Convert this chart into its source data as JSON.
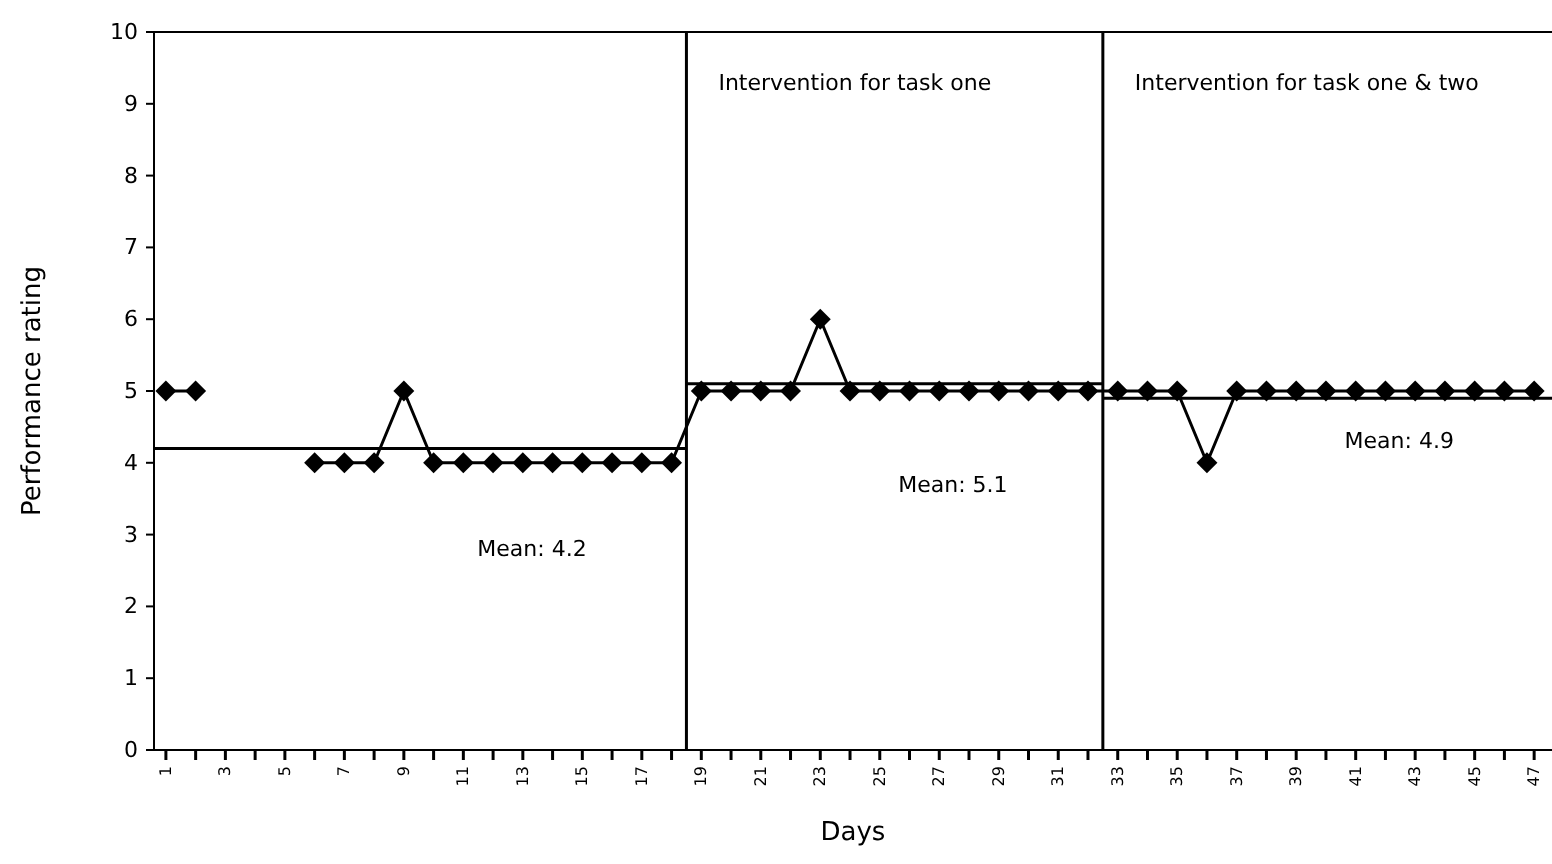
{
  "chart_data": {
    "type": "line",
    "xlabel": "Days",
    "ylabel": "Performance rating",
    "x": [
      1,
      2,
      3,
      4,
      5,
      6,
      7,
      8,
      9,
      10,
      11,
      12,
      13,
      14,
      15,
      16,
      17,
      18,
      19,
      20,
      21,
      22,
      23,
      24,
      25,
      26,
      27,
      28,
      29,
      30,
      31,
      32,
      33,
      34,
      35,
      36,
      37,
      38,
      39,
      40,
      41,
      42,
      43,
      44,
      45,
      46,
      47
    ],
    "series": [
      {
        "color": "#000000",
        "marker": "diamond",
        "values": [
          5,
          5,
          null,
          null,
          null,
          4,
          4,
          4,
          5,
          4,
          4,
          4,
          4,
          4,
          4,
          4,
          4,
          4,
          5,
          5,
          5,
          5,
          6,
          5,
          5,
          5,
          5,
          5,
          5,
          5,
          5,
          5,
          5,
          5,
          5,
          4,
          5,
          5,
          5,
          5,
          5,
          5,
          5,
          5,
          5,
          5,
          5
        ]
      },
      {
        "color": "#000000",
        "marker": "none",
        "x": [
          0.6,
          18.5
        ],
        "values": [
          4.2,
          4.2
        ]
      },
      {
        "color": "#000000",
        "marker": "none",
        "x": [
          18.5,
          32.5
        ],
        "values": [
          5.1,
          5.1
        ]
      },
      {
        "color": "#000000",
        "marker": "none",
        "x": [
          32.5,
          47.6
        ],
        "values": [
          4.9,
          4.9
        ]
      }
    ],
    "xlim": [
      0.6,
      47.6
    ],
    "xticks": [
      1,
      {
        "value": 2,
        "label": null
      },
      3,
      {
        "value": 4,
        "label": null
      },
      5,
      {
        "value": 6,
        "label": null
      },
      7,
      {
        "value": 8,
        "label": null
      },
      9,
      {
        "value": 10,
        "label": null
      },
      11,
      {
        "value": 12,
        "label": null
      },
      13,
      {
        "value": 14,
        "label": null
      },
      15,
      {
        "value": 16,
        "label": null
      },
      17,
      {
        "value": 18,
        "label": null
      },
      19,
      {
        "value": 20,
        "label": null
      },
      21,
      {
        "value": 22,
        "label": null
      },
      23,
      {
        "value": 24,
        "label": null
      },
      25,
      {
        "value": 26,
        "label": null
      },
      27,
      {
        "value": 28,
        "label": null
      },
      29,
      {
        "value": 30,
        "label": null
      },
      31,
      {
        "value": 32,
        "label": null
      },
      33,
      {
        "value": 34,
        "label": null
      },
      35,
      {
        "value": 36,
        "label": null
      },
      37,
      {
        "value": 38,
        "label": null
      },
      39,
      {
        "value": 40,
        "label": null
      },
      41,
      {
        "value": 42,
        "label": null
      },
      43,
      {
        "value": 44,
        "label": null
      },
      45,
      {
        "value": 46,
        "label": null
      },
      47
    ],
    "ylim": [
      0,
      10
    ],
    "yticks": [
      0,
      1,
      2,
      3,
      4,
      5,
      6,
      7,
      8,
      9,
      10
    ],
    "ref_lines": [
      {
        "axis": "x",
        "value": 18.5,
        "label": "Intervention for task one",
        "color": "#000000"
      },
      {
        "axis": "x",
        "value": 32.5,
        "label": "Intervention for task one & two",
        "color": "#000000"
      }
    ],
    "annotations": [
      "Mean: 4.2",
      "Mean: 5.1",
      "Mean: 4.9"
    ],
    "grid": false
  }
}
